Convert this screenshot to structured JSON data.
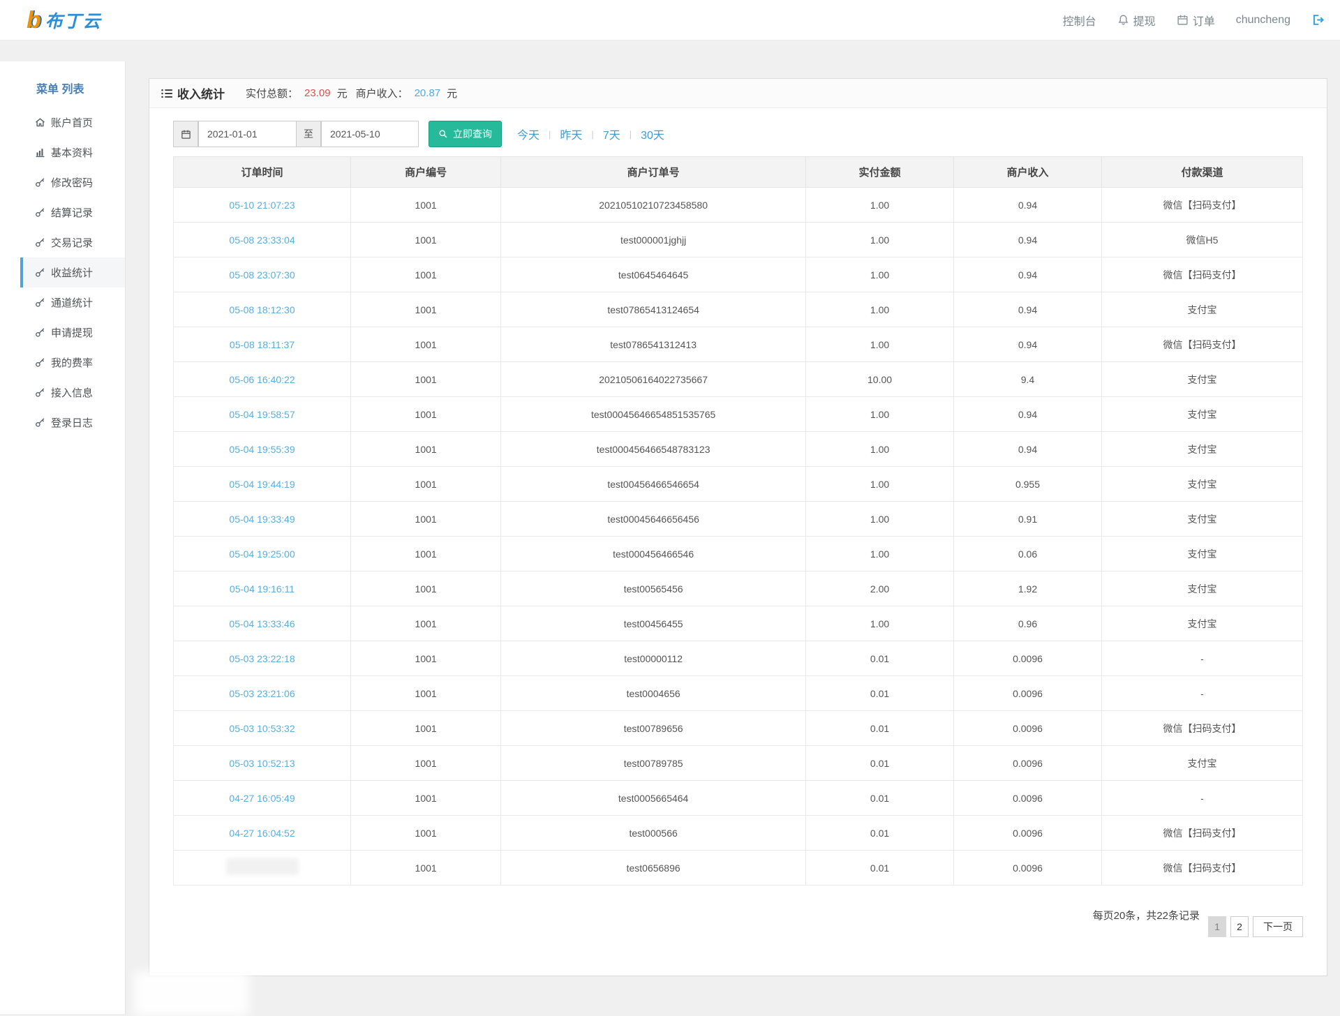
{
  "navbar": {
    "logo_text": "布丁云",
    "console_label": "控制台",
    "withdraw_label": "提现",
    "orders_label": "订单",
    "username": "chuncheng"
  },
  "sidebar": {
    "title": "菜单 列表",
    "items": [
      {
        "label": "账户首页",
        "icon": "home-icon",
        "active": false
      },
      {
        "label": "基本资料",
        "icon": "chart-icon",
        "active": false
      },
      {
        "label": "修改密码",
        "icon": "key-icon",
        "active": false
      },
      {
        "label": "结算记录",
        "icon": "key-icon",
        "active": false
      },
      {
        "label": "交易记录",
        "icon": "key-icon",
        "active": false
      },
      {
        "label": "收益统计",
        "icon": "key-icon",
        "active": true
      },
      {
        "label": "通道统计",
        "icon": "key-icon",
        "active": false
      },
      {
        "label": "申请提现",
        "icon": "key-icon",
        "active": false
      },
      {
        "label": "我的费率",
        "icon": "key-icon",
        "active": false
      },
      {
        "label": "接入信息",
        "icon": "key-icon",
        "active": false
      },
      {
        "label": "登录日志",
        "icon": "key-icon",
        "active": false
      }
    ]
  },
  "panel": {
    "title": "收入统计",
    "total_paid_label": "实付总额：",
    "total_paid_value": "23.09",
    "merchant_income_label": "商户收入：",
    "merchant_income_value": "20.87",
    "unit": "元"
  },
  "filter": {
    "date_from": "2021-01-01",
    "separator": "至",
    "date_to": "2021-05-10",
    "search_label": "立即查询",
    "quick_links": [
      "今天",
      "昨天",
      "7天",
      "30天"
    ]
  },
  "table": {
    "headers": [
      "订单时间",
      "商户编号",
      "商户订单号",
      "实付金额",
      "商户收入",
      "付款渠道"
    ],
    "col_widths": [
      "15.7%",
      "13.3%",
      "27.0%",
      "13.1%",
      "13.1%",
      "17.8%"
    ],
    "rows": [
      {
        "time": "05-10 21:07:23",
        "merchant_id": "1001",
        "order_no": "20210510210723458580",
        "amount": "1.00",
        "income": "0.94",
        "channel": "微信【扫码支付】"
      },
      {
        "time": "05-08 23:33:04",
        "merchant_id": "1001",
        "order_no": "test000001jghjj",
        "amount": "1.00",
        "income": "0.94",
        "channel": "微信H5"
      },
      {
        "time": "05-08 23:07:30",
        "merchant_id": "1001",
        "order_no": "test0645464645",
        "amount": "1.00",
        "income": "0.94",
        "channel": "微信【扫码支付】"
      },
      {
        "time": "05-08 18:12:30",
        "merchant_id": "1001",
        "order_no": "test07865413124654",
        "amount": "1.00",
        "income": "0.94",
        "channel": "支付宝"
      },
      {
        "time": "05-08 18:11:37",
        "merchant_id": "1001",
        "order_no": "test0786541312413",
        "amount": "1.00",
        "income": "0.94",
        "channel": "微信【扫码支付】"
      },
      {
        "time": "05-06 16:40:22",
        "merchant_id": "1001",
        "order_no": "20210506164022735667",
        "amount": "10.00",
        "income": "9.4",
        "channel": "支付宝"
      },
      {
        "time": "05-04 19:58:57",
        "merchant_id": "1001",
        "order_no": "test00045646654851535765",
        "amount": "1.00",
        "income": "0.94",
        "channel": "支付宝"
      },
      {
        "time": "05-04 19:55:39",
        "merchant_id": "1001",
        "order_no": "test000456466548783123",
        "amount": "1.00",
        "income": "0.94",
        "channel": "支付宝"
      },
      {
        "time": "05-04 19:44:19",
        "merchant_id": "1001",
        "order_no": "test00456466546654",
        "amount": "1.00",
        "income": "0.955",
        "channel": "支付宝"
      },
      {
        "time": "05-04 19:33:49",
        "merchant_id": "1001",
        "order_no": "test00045646656456",
        "amount": "1.00",
        "income": "0.91",
        "channel": "支付宝"
      },
      {
        "time": "05-04 19:25:00",
        "merchant_id": "1001",
        "order_no": "test000456466546",
        "amount": "1.00",
        "income": "0.06",
        "channel": "支付宝"
      },
      {
        "time": "05-04 19:16:11",
        "merchant_id": "1001",
        "order_no": "test00565456",
        "amount": "2.00",
        "income": "1.92",
        "channel": "支付宝"
      },
      {
        "time": "05-04 13:33:46",
        "merchant_id": "1001",
        "order_no": "test00456455",
        "amount": "1.00",
        "income": "0.96",
        "channel": "支付宝"
      },
      {
        "time": "05-03 23:22:18",
        "merchant_id": "1001",
        "order_no": "test00000112",
        "amount": "0.01",
        "income": "0.0096",
        "channel": "-"
      },
      {
        "time": "05-03 23:21:06",
        "merchant_id": "1001",
        "order_no": "test0004656",
        "amount": "0.01",
        "income": "0.0096",
        "channel": "-"
      },
      {
        "time": "05-03 10:53:32",
        "merchant_id": "1001",
        "order_no": "test00789656",
        "amount": "0.01",
        "income": "0.0096",
        "channel": "微信【扫码支付】"
      },
      {
        "time": "05-03 10:52:13",
        "merchant_id": "1001",
        "order_no": "test00789785",
        "amount": "0.01",
        "income": "0.0096",
        "channel": "支付宝"
      },
      {
        "time": "04-27 16:05:49",
        "merchant_id": "1001",
        "order_no": "test0005665464",
        "amount": "0.01",
        "income": "0.0096",
        "channel": "-"
      },
      {
        "time": "04-27 16:04:52",
        "merchant_id": "1001",
        "order_no": "test000566",
        "amount": "0.01",
        "income": "0.0096",
        "channel": "微信【扫码支付】"
      },
      {
        "time": "",
        "time_obscured": true,
        "merchant_id": "1001",
        "order_no": "test0656896",
        "amount": "0.01",
        "income": "0.0096",
        "channel": "微信【扫码支付】"
      }
    ]
  },
  "pagination": {
    "summary": "每页20条，共22条记录",
    "pages": [
      "1",
      "2"
    ],
    "active_page": "1",
    "next_label": "下一页"
  },
  "colors": {
    "accent_green": "#26b99a",
    "link_blue": "#3d9bd8",
    "time_blue": "#58aede",
    "income_blue": "#56a9de",
    "amount_red": "#cf5050",
    "sidebar_active_bar": "#55a1d6"
  }
}
